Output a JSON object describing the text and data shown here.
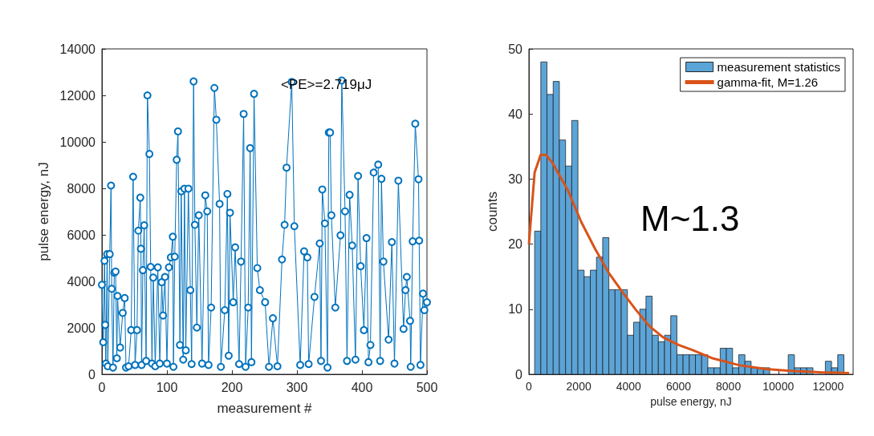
{
  "chart_data": [
    {
      "type": "line",
      "xlabel": "measurement #",
      "ylabel": "pulse energy, nJ",
      "annotations": [
        "<PE>=2.719μJ"
      ],
      "marker": "circle",
      "grid": false,
      "xlim": [
        0,
        500
      ],
      "xticks": [
        0,
        100,
        200,
        300,
        400,
        500
      ],
      "ylim": [
        0,
        14000
      ],
      "yticks": [
        0,
        2000,
        4000,
        6000,
        8000,
        10000,
        12000,
        14000
      ],
      "series": [
        {
          "color": "#0072bd",
          "x": [
            0,
            2,
            4,
            5,
            6,
            8,
            9,
            12,
            14,
            15,
            17,
            19,
            21,
            23,
            24,
            28,
            32,
            35,
            37,
            41,
            45,
            48,
            51,
            54,
            56,
            59,
            60,
            61,
            63,
            65,
            68,
            70,
            73,
            75,
            77,
            79,
            82,
            86,
            89,
            92,
            94,
            97,
            100,
            103,
            106,
            109,
            110,
            112,
            115,
            117,
            120,
            122,
            125,
            127,
            129,
            133,
            136,
            138,
            141,
            143,
            146,
            149,
            154,
            159,
            162,
            164,
            168,
            173,
            176,
            181,
            183,
            189,
            193,
            195,
            197,
            202,
            205,
            211,
            214,
            218,
            221,
            225,
            228,
            230,
            234,
            239,
            243,
            251,
            257,
            263,
            270,
            277,
            281,
            284,
            292,
            296,
            305,
            311,
            316,
            318,
            327,
            335,
            337,
            339,
            343,
            347,
            349,
            351,
            353,
            359,
            367,
            369,
            374,
            377,
            381,
            385,
            390,
            394,
            398,
            403,
            407,
            410,
            413,
            418,
            425,
            428,
            430,
            433,
            441,
            446,
            450,
            456,
            464,
            467,
            469,
            474,
            475,
            478,
            482,
            487,
            488,
            490,
            494,
            496,
            500
          ],
          "values": [
            3850,
            1380,
            4880,
            2125,
            460,
            5170,
            345,
            5170,
            8120,
            3680,
            290,
            4370,
            4420,
            690,
            3370,
            1150,
            2640,
            3280,
            290,
            345,
            1900,
            8500,
            400,
            1900,
            6180,
            7600,
            5400,
            400,
            4480,
            6410,
            575,
            12000,
            9480,
            4620,
            460,
            4160,
            345,
            4600,
            460,
            3960,
            2530,
            4190,
            460,
            4600,
            5030,
            5920,
            320,
            5060,
            9230,
            10450,
            1260,
            7870,
            630,
            7985,
            1030,
            7985,
            3620,
            440,
            12600,
            6430,
            2010,
            6840,
            460,
            7700,
            7010,
            400,
            2870,
            12320,
            10950,
            7330,
            320,
            2760,
            7760,
            800,
            6950,
            3100,
            5460,
            440,
            4850,
            11200,
            320,
            2870,
            9730,
            520,
            12065,
            4570,
            3620,
            3100,
            320,
            2410,
            345,
            4940,
            6430,
            8890,
            12580,
            6370,
            400,
            5290,
            5030,
            440,
            3330,
            5630,
            575,
            7950,
            6490,
            290,
            10400,
            10400,
            6840,
            2870,
            5980,
            12640,
            7010,
            575,
            7720,
            5540,
            630,
            8530,
            4650,
            1900,
            5860,
            520,
            1260,
            8680,
            9020,
            575,
            8410,
            4850,
            1490,
            5690,
            460,
            8330,
            1950,
            3620,
            4190,
            2300,
            320,
            5720,
            10780,
            8390,
            5750,
            400,
            3470,
            2760,
            3100
          ]
        }
      ]
    },
    {
      "type": "histogram",
      "xlabel": "pulse energy, nJ",
      "ylabel": "counts",
      "annotations": [
        "M~1.3"
      ],
      "legend": "top right",
      "grid": false,
      "xlim": [
        0,
        13000
      ],
      "xticks": [
        0,
        2000,
        4000,
        6000,
        8000,
        10000,
        12000
      ],
      "ylim": [
        0,
        50
      ],
      "yticks": [
        0,
        10,
        20,
        30,
        40,
        50
      ],
      "bins": [
        230,
        478,
        726,
        974,
        1222,
        1470,
        1718,
        1966,
        2214,
        2462,
        2710,
        2958,
        3206,
        3454,
        3702,
        3950,
        4198,
        4446,
        4694,
        4942,
        5190,
        5438,
        5686,
        5934,
        6182,
        6430,
        6678,
        6926,
        7174,
        7422,
        7670,
        7918,
        8166,
        8414,
        8662,
        8910,
        9158,
        9406,
        9654,
        9902,
        10150,
        10398,
        10646,
        10894,
        11142,
        11390,
        11638,
        11886,
        12134,
        12382,
        12630
      ],
      "series": [
        {
          "name": "measurement statistics",
          "type": "histogram",
          "color": "#5ba4d8",
          "values": [
            22,
            48,
            43,
            45,
            36,
            32,
            39,
            16,
            15,
            16,
            18,
            21,
            13,
            13,
            13,
            6,
            8,
            10,
            12,
            6,
            5,
            6,
            9,
            3,
            3,
            3,
            3,
            3,
            1,
            1,
            4,
            4,
            1,
            3,
            2,
            1,
            1,
            1,
            0,
            0,
            0,
            3,
            1,
            1,
            1,
            0,
            0,
            2,
            1,
            3
          ]
        },
        {
          "name": "gamma-fit, M=1.26",
          "type": "line",
          "color": "#d95319",
          "x": [
            0,
            230,
            470,
            690,
            960,
            1560,
            2100,
            2650,
            3200,
            3740,
            4290,
            4830,
            5370,
            6000,
            6570,
            7330,
            8430,
            9520,
            10610,
            11700,
            12840
          ],
          "values": [
            20,
            31,
            33.7,
            33.7,
            32.4,
            28.3,
            23.4,
            19.3,
            15.6,
            12.7,
            9.9,
            7.4,
            5.7,
            4.5,
            3.7,
            2.5,
            1.4,
            0.8,
            0.5,
            0.3,
            0.2
          ]
        }
      ]
    }
  ]
}
